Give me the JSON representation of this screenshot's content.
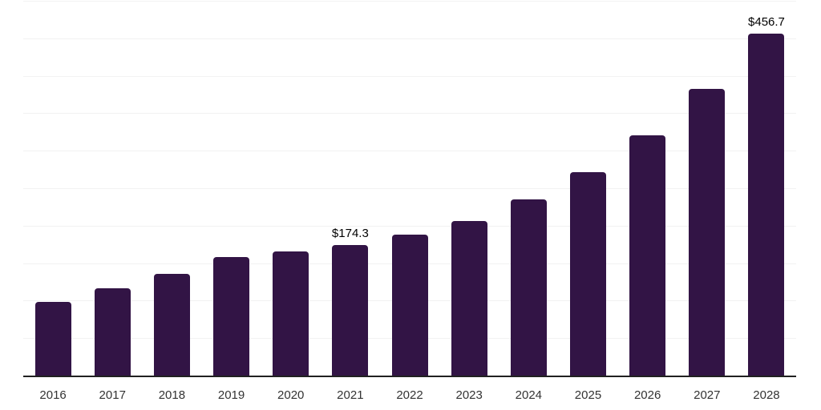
{
  "chart_data": {
    "type": "bar",
    "title": "",
    "xlabel": "",
    "ylabel": "",
    "categories": [
      "2016",
      "2017",
      "2018",
      "2019",
      "2020",
      "2021",
      "2022",
      "2023",
      "2024",
      "2025",
      "2026",
      "2027",
      "2028"
    ],
    "values": [
      98.8,
      116.2,
      135.7,
      158.1,
      165.6,
      174.3,
      187.7,
      206.5,
      234.6,
      271.9,
      321.0,
      382.8,
      456.7
    ],
    "data_labels": [
      "",
      "",
      "",
      "",
      "",
      "$174.3",
      "",
      "",
      "",
      "",
      "",
      "",
      "$456.7"
    ],
    "ylim": [
      0,
      500
    ],
    "gridline_step": 50,
    "grid": "horizontal",
    "legend": "none",
    "y_tick_labels_shown": false,
    "colors": {
      "bar": "#321445",
      "gridline": "#f2f2f2",
      "axis_line": "#212121",
      "tick_label": "#333333",
      "data_label": "#000000"
    }
  }
}
